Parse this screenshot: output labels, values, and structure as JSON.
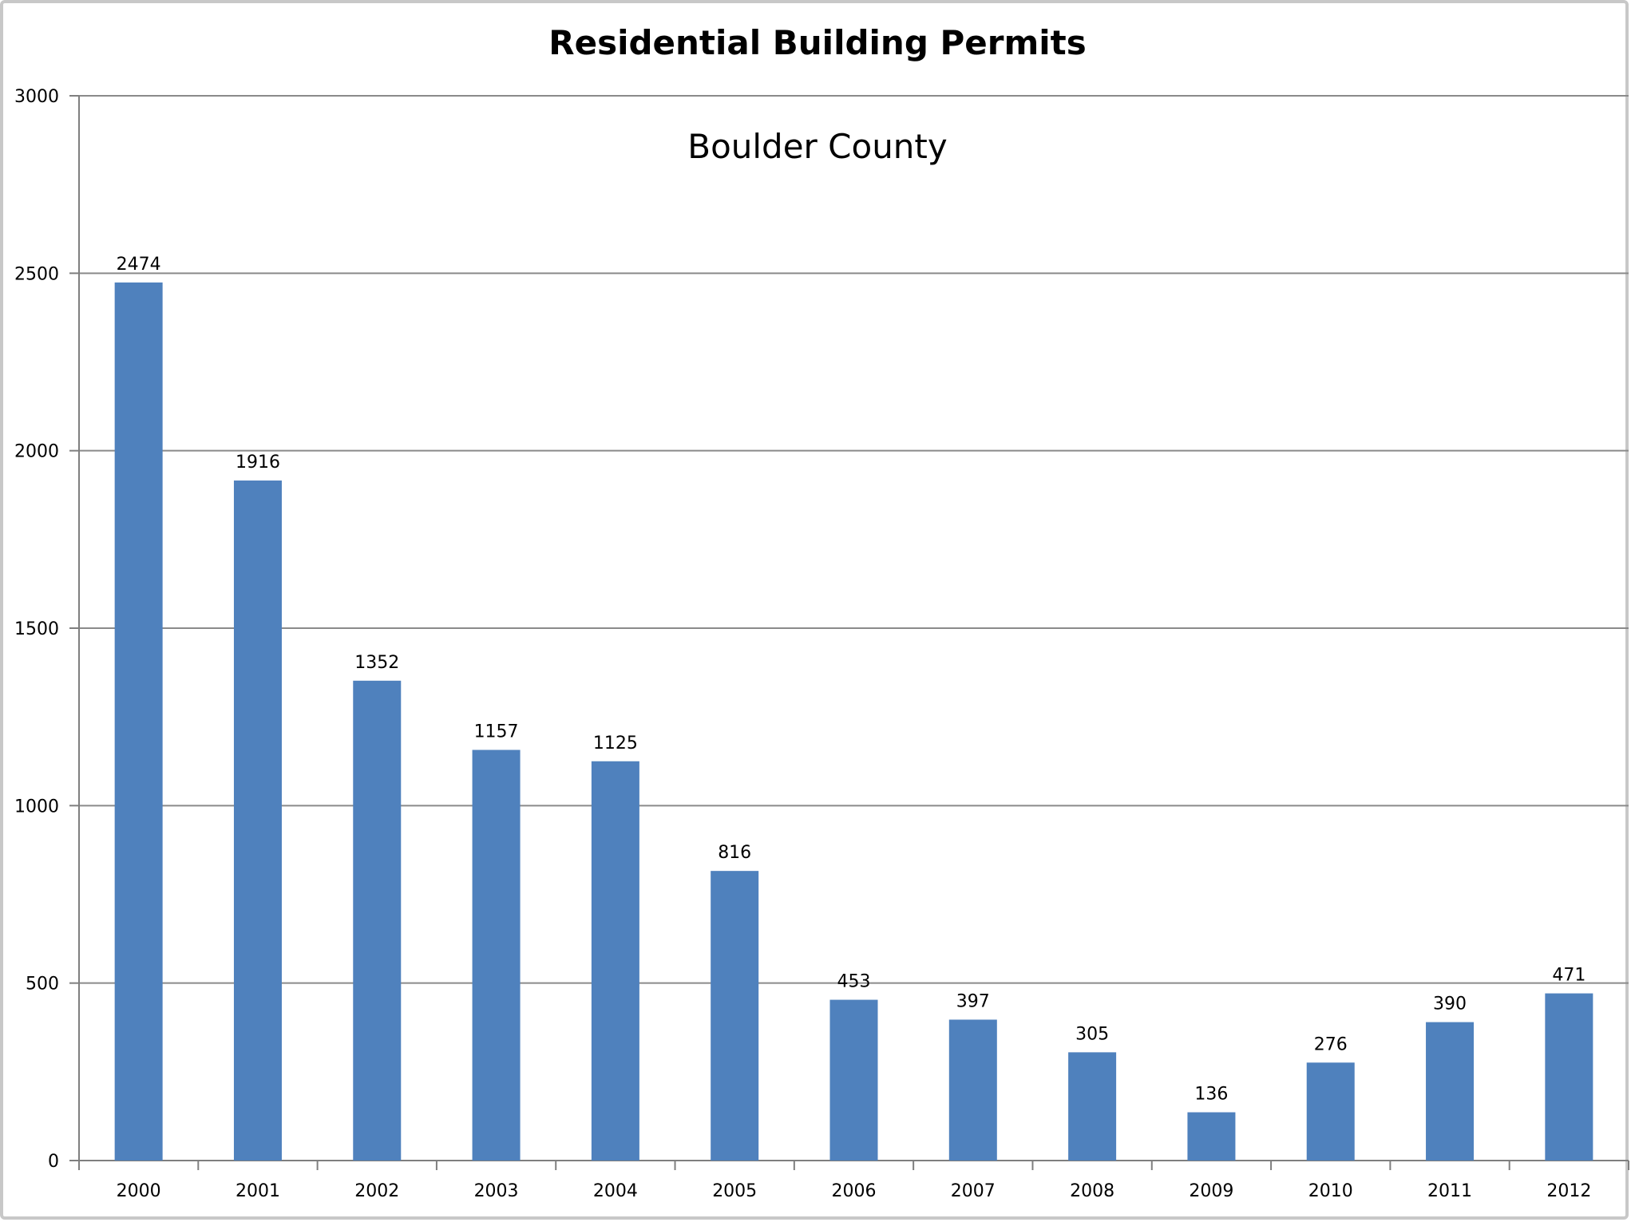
{
  "chart_data": {
    "type": "bar",
    "title": "Residential Building Permits",
    "subtitle": "Boulder County",
    "categories": [
      "2000",
      "2001",
      "2002",
      "2003",
      "2004",
      "2005",
      "2006",
      "2007",
      "2008",
      "2009",
      "2010",
      "2011",
      "2012"
    ],
    "values": [
      2474,
      1916,
      1352,
      1157,
      1125,
      816,
      453,
      397,
      305,
      136,
      276,
      390,
      471
    ],
    "yticks": [
      "0",
      "500",
      "1000",
      "1500",
      "2000",
      "2500",
      "3000"
    ],
    "ylim": [
      0,
      3000
    ],
    "xlabel": "",
    "ylabel": "",
    "grid": true,
    "colors": {
      "bar": "#4f81bd"
    }
  }
}
